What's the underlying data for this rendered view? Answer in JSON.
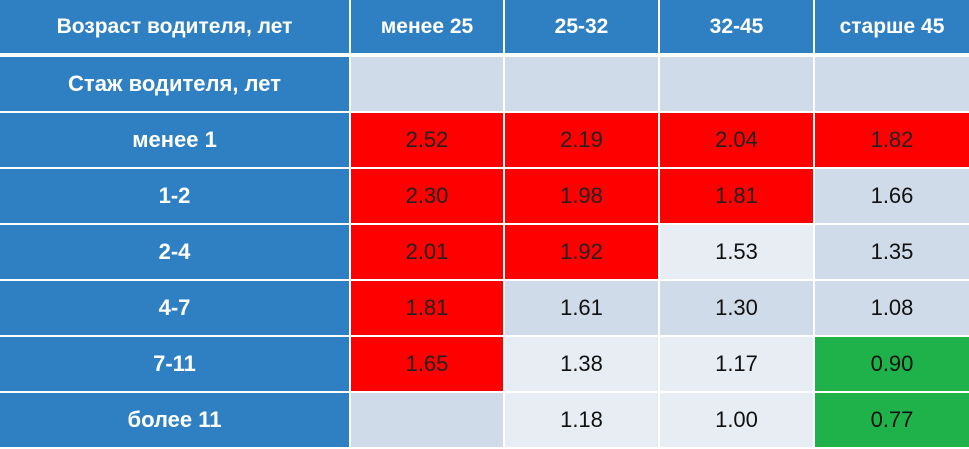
{
  "header": {
    "corner": "Возраст водителя, лет",
    "columns": [
      "менее 25",
      "25-32",
      "32-45",
      "старше 45"
    ]
  },
  "subheader": "Стаж водителя, лет",
  "rows": [
    {
      "label": "менее 1",
      "values": [
        "2.52",
        "2.19",
        "2.04",
        "1.82"
      ],
      "tones": [
        "red",
        "red",
        "red",
        "red"
      ]
    },
    {
      "label": "1-2",
      "values": [
        "2.30",
        "1.98",
        "1.81",
        "1.66"
      ],
      "tones": [
        "red",
        "red",
        "red",
        "dark"
      ]
    },
    {
      "label": "2-4",
      "values": [
        "2.01",
        "1.92",
        "1.53",
        "1.35"
      ],
      "tones": [
        "red",
        "red",
        "light",
        "dark"
      ]
    },
    {
      "label": "4-7",
      "values": [
        "1.81",
        "1.61",
        "1.30",
        "1.08"
      ],
      "tones": [
        "red",
        "dark",
        "dark",
        "dark"
      ]
    },
    {
      "label": "7-11",
      "values": [
        "1.65",
        "1.38",
        "1.17",
        "0.90"
      ],
      "tones": [
        "red",
        "light",
        "light",
        "green"
      ]
    },
    {
      "label": "более 11",
      "values": [
        "",
        "1.18",
        "1.00",
        "0.77"
      ],
      "tones": [
        "dark",
        "light",
        "light",
        "green"
      ]
    }
  ],
  "colors": {
    "header_blue": "#2f80c3",
    "red": "#ff0000",
    "green": "#1fb24a",
    "dark_gray": "#cfdbe9",
    "light_gray": "#e8edf4"
  }
}
